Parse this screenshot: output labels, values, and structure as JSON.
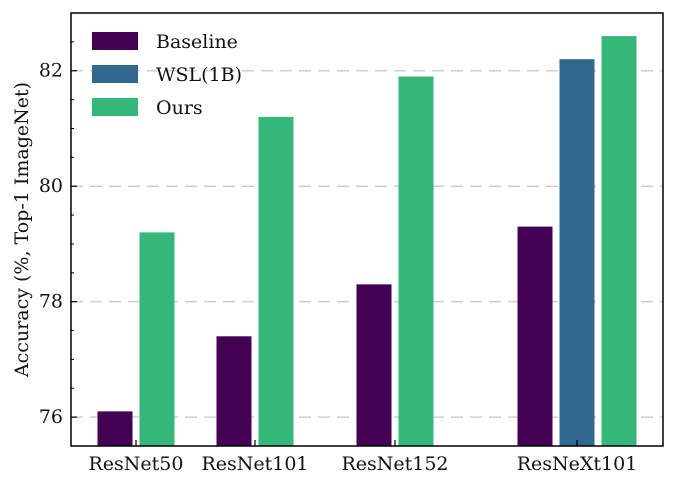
{
  "chart_data": {
    "type": "bar",
    "title": "",
    "xlabel": "",
    "ylabel": "Accuracy (%, Top-1 ImageNet)",
    "categories": [
      "ResNet50",
      "ResNet101",
      "ResNet152",
      "ResNeXt101"
    ],
    "series": [
      {
        "name": "Baseline",
        "color": "#440154",
        "values": [
          76.1,
          77.4,
          78.3,
          79.3
        ]
      },
      {
        "name": "WSL(1B)",
        "color": "#31688e",
        "values": [
          null,
          null,
          null,
          82.2
        ]
      },
      {
        "name": "Ours",
        "color": "#35b779",
        "values": [
          79.2,
          81.2,
          81.9,
          82.6
        ]
      }
    ],
    "ylim": [
      75.5,
      83.0
    ],
    "yticks": [
      76,
      78,
      80,
      82
    ],
    "grid": "horizontal dashed",
    "legend_position": "top-left"
  }
}
